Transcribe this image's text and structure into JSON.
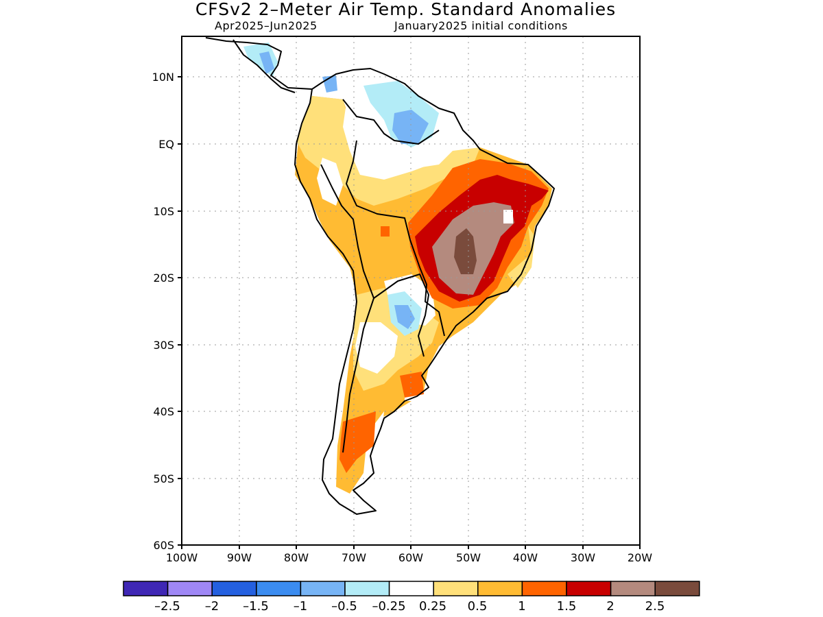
{
  "title": "CFSv2 2–Meter Air Temp. Standard Anomalies",
  "subtitle_period": "Apr2025–Jun2025",
  "subtitle_ic": "January2025 initial conditions",
  "axes": {
    "lat_labels": [
      "10N",
      "EQ",
      "10S",
      "20S",
      "30S",
      "40S",
      "50S",
      "60S"
    ],
    "lon_labels": [
      "100W",
      "90W",
      "80W",
      "70W",
      "60W",
      "50W",
      "40W",
      "30W",
      "20W"
    ],
    "grid": "dotted"
  },
  "colorbar": {
    "labels": [
      "–2.5",
      "–2",
      "–1.5",
      "–1",
      "–0.5",
      "–0.25",
      "0.25",
      "0.5",
      "1",
      "1.5",
      "2",
      "2.5"
    ],
    "colors": [
      "#3f27b5",
      "#9f87f5",
      "#2460e0",
      "#3b8cf0",
      "#77b4f5",
      "#b3ecf7",
      "#ffffff",
      "#ffe07a",
      "#ffbb33",
      "#ff6400",
      "#c80000",
      "#b48a7e",
      "#7a4b3c"
    ]
  }
}
